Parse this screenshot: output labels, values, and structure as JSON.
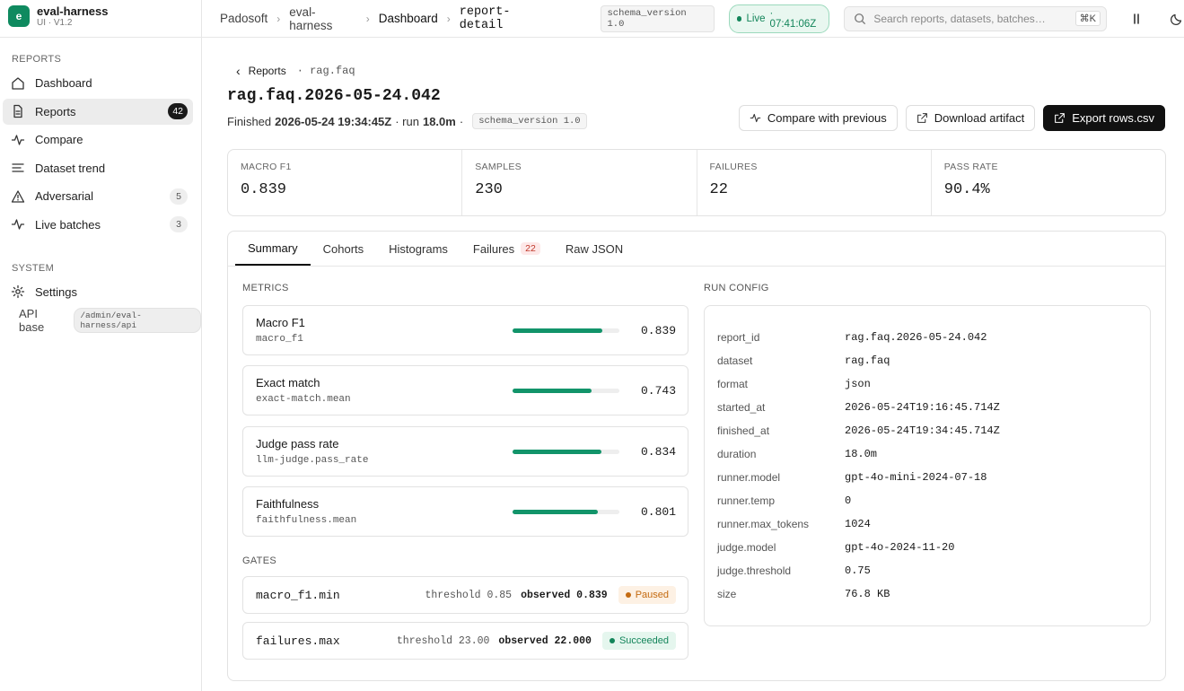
{
  "app": {
    "logo": "e",
    "name": "eval-harness",
    "version": "UI · V1.2"
  },
  "sidebar": {
    "sections": [
      {
        "title": "REPORTS",
        "items": [
          {
            "label": "Dashboard"
          },
          {
            "label": "Reports",
            "badge": 42
          },
          {
            "label": "Compare"
          },
          {
            "label": "Dataset trend"
          },
          {
            "label": "Adversarial",
            "badge": 5
          },
          {
            "label": "Live batches",
            "badge": 3
          }
        ]
      },
      {
        "title": "SYSTEM",
        "items": [
          {
            "label": "Settings"
          }
        ]
      }
    ],
    "api_base": {
      "label": "API base",
      "value": "/admin/eval-harness/api"
    }
  },
  "topbar": {
    "breadcrumbs": [
      "Padosoft",
      "eval-harness",
      "Dashboard",
      "report-detail"
    ],
    "schema": "schema_version 1.0",
    "live": "Live",
    "live_time": "· 07:41:06Z",
    "search": "Search reports, datasets, batches…",
    "shortcut": "⌘K"
  },
  "page": {
    "back": "Reports",
    "crumb": "· rag.faq",
    "title": "rag.faq.2026-05-24.042",
    "finished_label": "Finished",
    "finished": "2026-05-24 19:34:45Z",
    "run_label": "· run",
    "duration": "18.0m",
    "tail": "·",
    "schema": "schema_version 1.0",
    "actions": [
      "Compare with previous",
      "Download artifact",
      "Export rows.csv"
    ]
  },
  "kpis": [
    {
      "label": "MACRO F1",
      "value": "0.839"
    },
    {
      "label": "SAMPLES",
      "value": "230"
    },
    {
      "label": "FAILURES",
      "value": "22"
    },
    {
      "label": "PASS RATE",
      "value": "90.4%"
    }
  ],
  "tabs": [
    {
      "label": "Summary"
    },
    {
      "label": "Cohorts"
    },
    {
      "label": "Histograms"
    },
    {
      "label": "Failures",
      "badge": 22
    },
    {
      "label": "Raw JSON"
    }
  ],
  "metrics": {
    "title": "METRICS",
    "rows": [
      {
        "name": "Macro F1",
        "key": "macro_f1",
        "value": 0.839
      },
      {
        "name": "Exact match",
        "key": "exact-match.mean",
        "value": 0.743
      },
      {
        "name": "Judge pass rate",
        "key": "llm-judge.pass_rate",
        "value": 0.834
      },
      {
        "name": "Faithfulness",
        "key": "faithfulness.mean",
        "value": 0.801
      }
    ]
  },
  "gates": {
    "title": "GATES",
    "rows": [
      {
        "name": "macro_f1.min",
        "threshold": "threshold 0.85",
        "observed": "observed 0.839",
        "status": "Paused"
      },
      {
        "name": "failures.max",
        "threshold": "threshold 23.00",
        "observed": "observed 22.000",
        "status": "Succeeded"
      }
    ]
  },
  "run_config": {
    "title": "RUN CONFIG",
    "rows": [
      [
        "report_id",
        "rag.faq.2026-05-24.042"
      ],
      [
        "dataset",
        "rag.faq"
      ],
      [
        "format",
        "json"
      ],
      [
        "started_at",
        "2026-05-24T19:16:45.714Z"
      ],
      [
        "finished_at",
        "2026-05-24T19:34:45.714Z"
      ],
      [
        "duration",
        "18.0m"
      ],
      [
        "runner.model",
        "gpt-4o-mini-2024-07-18"
      ],
      [
        "runner.temp",
        "0"
      ],
      [
        "runner.max_tokens",
        "1024"
      ],
      [
        "judge.model",
        "gpt-4o-2024-11-20"
      ],
      [
        "judge.threshold",
        "0.75"
      ],
      [
        "size",
        "76.8 KB"
      ]
    ]
  }
}
